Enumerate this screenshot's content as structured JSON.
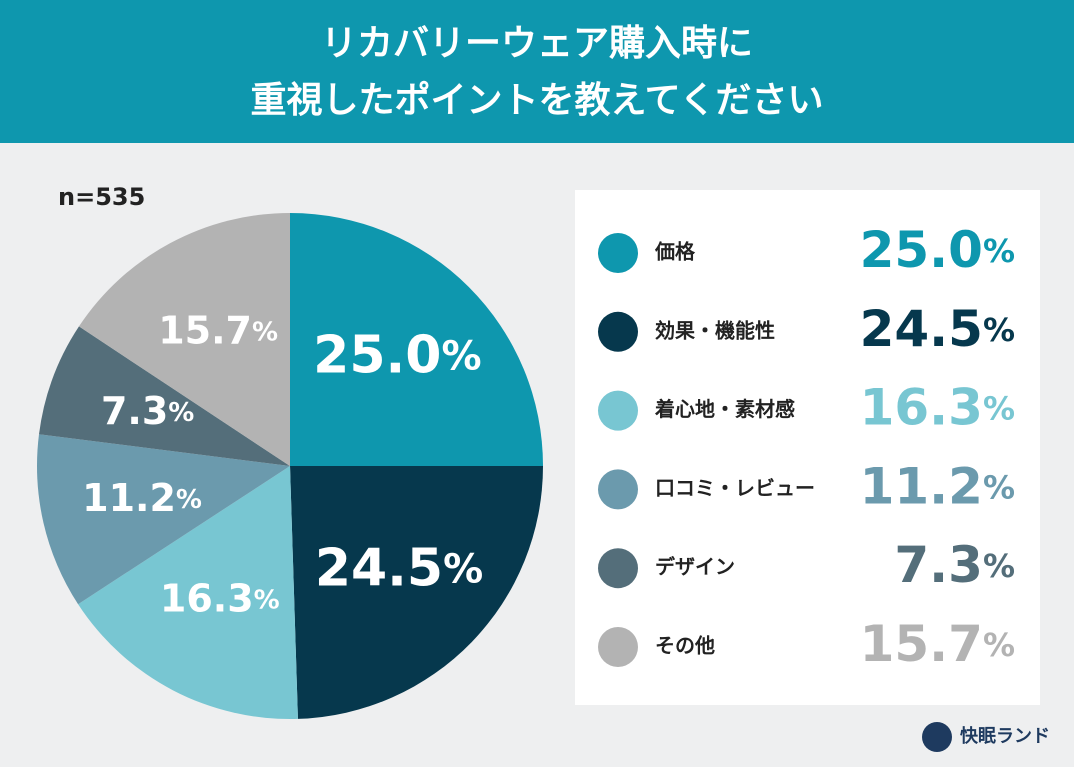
{
  "chart_data": {
    "type": "pie",
    "title_lines": [
      "リカバリーウェア購入時に",
      "重視したポイントを教えてください"
    ],
    "note": "n=535",
    "categories": [
      "価格",
      "効果・機能性",
      "着心地・素材感",
      "口コミ・レビュー",
      "デザイン",
      "その他"
    ],
    "values": [
      25.0,
      24.5,
      16.3,
      11.2,
      7.3,
      15.7
    ],
    "value_labels": [
      "25.0%",
      "24.5%",
      "16.3%",
      "11.2%",
      "7.3%",
      "15.7%"
    ],
    "colors": [
      "#0e97ae",
      "#06384d",
      "#78c6d2",
      "#6b9aad",
      "#546e7a",
      "#b3b3b3"
    ],
    "brand": "快眠ランド"
  }
}
